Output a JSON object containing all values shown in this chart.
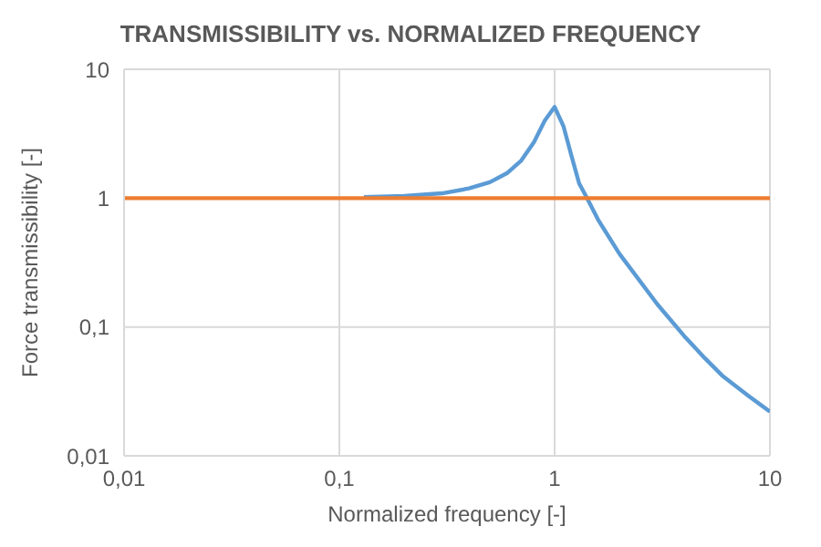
{
  "chart_data": {
    "type": "line",
    "title": "TRANSMISSIBILITY vs. NORMALIZED FREQUENCY",
    "xlabel": "Normalized frequency [-]",
    "ylabel": "Force transmissibility [-]",
    "log": "xy",
    "grid": true,
    "marker": "none",
    "line_style": "solid",
    "xlim": [
      0.01,
      10
    ],
    "ylim": [
      0.01,
      10
    ],
    "xticks": [
      {
        "value": 0.01,
        "label": "0,01"
      },
      {
        "value": 0.1,
        "label": "0,1"
      },
      1,
      10
    ],
    "yticks": [
      {
        "value": 0.01,
        "label": "0,01"
      },
      {
        "value": 0.1,
        "label": "0,1"
      },
      1,
      10
    ],
    "series": [
      {
        "color": "#5b9bd5",
        "x": [
          0.13,
          0.2,
          0.3,
          0.4,
          0.5,
          0.6,
          0.7,
          0.8,
          0.9,
          1.0,
          1.1,
          1.2,
          1.3,
          1.414,
          1.6,
          2,
          3,
          4,
          5,
          6,
          8,
          10
        ],
        "values": [
          1.02,
          1.04,
          1.09,
          1.19,
          1.33,
          1.56,
          1.96,
          2.7,
          4.0,
          5.1,
          3.6,
          2.1,
          1.3,
          1.0,
          0.67,
          0.37,
          0.15,
          0.085,
          0.057,
          0.042,
          0.029,
          0.022
        ]
      },
      {
        "color": "#ed7d31",
        "x": [
          0.01,
          10
        ],
        "values": [
          1,
          1
        ]
      }
    ]
  }
}
